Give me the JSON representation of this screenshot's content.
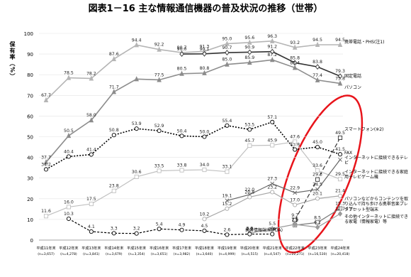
{
  "chart_data": {
    "type": "line",
    "title": "図表1－16 主な情報通信機器の普及状況の推移（世帯）",
    "y_label": "保有率（%）",
    "categories": [
      "平成11年末",
      "平成12年末",
      "平成13年末",
      "平成14年末",
      "平成15年末",
      "平成16年末",
      "平成17年末",
      "平成18年末",
      "平成19年末",
      "平成20年末",
      "平成21年末",
      "平成22年末",
      "平成23年末",
      "平成24年末"
    ],
    "sample_sizes": [
      "(n=3,657)",
      "(n=4,278)",
      "(n=3,841)",
      "(n=3,679)",
      "(n=3,354)",
      "(n=3,651)",
      "(n=3,982)",
      "(n=3,640)",
      "(n=4,999)",
      "(n=4,515)",
      "(n=4,547)",
      "(n=22,271)",
      "(n=16,530)",
      "(n=20,418)"
    ],
    "ylim": [
      0,
      100
    ],
    "yticks": [
      0,
      10,
      20,
      30,
      40,
      50,
      60,
      70,
      80,
      90,
      100
    ],
    "series": [
      {
        "name": "携帯電話・PHS(注1)",
        "color": "#b5b5b5",
        "marker": "triangle",
        "dash": "none",
        "values": [
          67.7,
          78.5,
          78.2,
          87.6,
          94.4,
          92.2,
          90.7,
          91.3,
          95.0,
          95.6,
          96.3,
          93.2,
          94.5,
          94.5
        ],
        "value_labels": [
          "67.7",
          "78.5",
          "78.2",
          "87.6",
          "94.4",
          "92.2",
          "90.7",
          "91.3",
          "95.0",
          "95.6",
          "96.3",
          "93.2",
          "94.5",
          "94.5"
        ]
      },
      {
        "name": "固定電話",
        "color": "#333333",
        "marker": "diamond",
        "dash": "none",
        "values": [
          null,
          null,
          null,
          null,
          null,
          null,
          90.0,
          90.1,
          90.7,
          90.9,
          91.2,
          85.8,
          83.8,
          79.3
        ],
        "value_labels": [
          null,
          null,
          null,
          null,
          null,
          null,
          "90.0",
          "90.1",
          "90.7",
          "90.9",
          "91.2",
          "85.8",
          "83.8",
          "79.3"
        ]
      },
      {
        "name": "パソコン",
        "color": "#8c8c8c",
        "marker": "triangle",
        "dash": "none",
        "values": [
          37.7,
          50.5,
          58.0,
          71.7,
          77.9,
          77.5,
          80.5,
          80.8,
          85.0,
          85.9,
          87.2,
          83.4,
          77.4,
          75.8
        ],
        "value_labels": [
          "37.7",
          "50.5",
          "58.0",
          "71.7",
          null,
          "77.5",
          "80.5",
          "80.8",
          "85.0",
          "85.9",
          "87.2",
          "83.4",
          "77.4",
          "75.8"
        ]
      },
      {
        "name": "FAX",
        "color": "#000000",
        "marker": "circle",
        "dash": "2 2",
        "values": [
          34.2,
          40.4,
          41.4,
          50.8,
          53.9,
          52.9,
          50.4,
          50.0,
          55.4,
          53.5,
          57.1,
          43.8,
          45.0,
          41.5
        ],
        "value_labels": [
          "34.2",
          "40.4",
          "41.4",
          "50.8",
          "53.9",
          "52.9",
          "50.4",
          "50.0",
          "55.4",
          "53.5",
          "57.1",
          "43.8",
          "45.0",
          "41.5"
        ]
      },
      {
        "name": "スマートフォン(※2)",
        "color": "#333333",
        "marker": "square",
        "dash": "6 3",
        "values": [
          null,
          null,
          null,
          null,
          null,
          null,
          null,
          null,
          null,
          null,
          null,
          9.7,
          29.3,
          49.5
        ],
        "value_labels": [
          null,
          null,
          null,
          null,
          null,
          null,
          null,
          null,
          null,
          null,
          null,
          "9.7",
          "29.3",
          "49.5"
        ]
      },
      {
        "name": "インターネットに接続できる家庭用テレビゲーム機",
        "color": "#c0c0c0",
        "marker": "square",
        "dash": "none",
        "values": [
          11.6,
          16.0,
          17.5,
          23.8,
          30.6,
          33.5,
          33.8,
          34.0,
          33.1,
          45.7,
          45.9,
          47.6,
          33.6,
          29.5
        ],
        "value_labels": [
          "11.6",
          "16.0",
          "17.5",
          "23.8",
          "30.6",
          "33.5",
          "33.8",
          "34.0",
          "33.1",
          "45.7",
          "45.9",
          "47.6",
          "33.6",
          "29.5"
        ]
      },
      {
        "name": "インターネットに接続できるテレビ",
        "color": "#666666",
        "marker": "cross",
        "dash": "none",
        "values": [
          null,
          null,
          null,
          null,
          null,
          null,
          null,
          null,
          19.1,
          22.0,
          27.3,
          22.9,
          24.5,
          38.9
        ],
        "value_labels": [
          null,
          null,
          null,
          null,
          null,
          null,
          null,
          null,
          "19.1",
          "22.0",
          "27.3",
          "22.9",
          "24.5",
          null
        ]
      },
      {
        "name": "パソコンなどからコンテンツを取り込んで持ち歩ける携帯音楽プレイヤー",
        "color": "#a8a8a8",
        "marker": "circle",
        "dash": "none",
        "values": [
          null,
          null,
          null,
          null,
          null,
          null,
          null,
          10.2,
          15.2,
          20.8,
          23.2,
          17.0,
          20.1,
          21.4
        ],
        "value_labels": [
          null,
          null,
          null,
          null,
          null,
          null,
          null,
          "10.2",
          "15.2",
          "20.8",
          "23.2",
          "17.0",
          "20.1",
          "21.4"
        ]
      },
      {
        "name": "タブレット型端末",
        "color": "#777777",
        "marker": "square",
        "dash": "none",
        "values": [
          null,
          null,
          null,
          null,
          null,
          null,
          null,
          null,
          null,
          null,
          null,
          7.2,
          8.5,
          15.3
        ],
        "value_labels": [
          null,
          null,
          null,
          null,
          null,
          null,
          null,
          null,
          null,
          null,
          null,
          "7.2",
          "8.5",
          "15.3"
        ]
      },
      {
        "name": "その他インターネットに接続できる家電（情報家電）等",
        "color": "#999999",
        "marker": "diamond",
        "dash": "none",
        "values": [
          null,
          null,
          null,
          null,
          null,
          null,
          null,
          null,
          null,
          3.3,
          5.5,
          7.6,
          6.2,
          12.7
        ],
        "value_labels": [
          null,
          null,
          null,
          null,
          null,
          null,
          null,
          null,
          null,
          "3.3",
          "5.5",
          "7.6",
          "6.2",
          "12.7"
        ]
      },
      {
        "name": "携帯情報端末(PDA)",
        "color": "#000000",
        "marker": "circle",
        "dash": "3 2",
        "values": [
          null,
          10.3,
          4.1,
          3.3,
          3.2,
          5.4,
          4.9,
          4.5,
          2.6,
          2.9,
          2.9,
          null,
          null,
          null
        ],
        "value_labels": [
          null,
          "10.3",
          "4.1",
          "3.3",
          "3.2",
          "5.4",
          "4.9",
          "4.5",
          "2.6",
          "2.9",
          "2.9",
          null,
          null,
          null
        ]
      }
    ],
    "grid": true
  }
}
